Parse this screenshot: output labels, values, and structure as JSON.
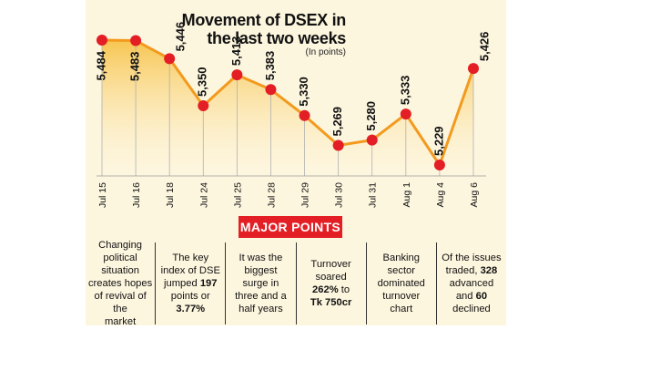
{
  "title_line1": "Movement of DSEX in",
  "title_line2": "the last two weeks",
  "subtitle": "(In points)",
  "major_points_title": "MAJOR POINTS",
  "colors": {
    "line": "#f39a1e",
    "marker": "#e31e24",
    "fill_top": "#f7c040",
    "fill_bottom": "#fdf6df",
    "badge": "#e31e24"
  },
  "chart_data": {
    "type": "area",
    "title": "Movement of DSEX in the last two weeks",
    "subtitle": "(In points)",
    "categories": [
      "Jul 15",
      "Jul 16",
      "Jul 18",
      "Jul 24",
      "Jul 25",
      "Jul 28",
      "Jul 29",
      "Jul 30",
      "Jul 31",
      "Aug 1",
      "Aug 4",
      "Aug 6"
    ],
    "values": [
      5484,
      5483,
      5446,
      5350,
      5413,
      5383,
      5330,
      5269,
      5280,
      5333,
      5229,
      5426
    ],
    "value_labels": [
      "5,484",
      "5,483",
      "5,446",
      "5,350",
      "5,413",
      "5,383",
      "5,330",
      "5,269",
      "5,280",
      "5,333",
      "5,229",
      "5,426"
    ],
    "xlabel": "",
    "ylabel": "",
    "grid": false
  },
  "points": [
    {
      "text": [
        "Changing",
        "political situation",
        "creates hopes",
        "of revival of the",
        "market"
      ]
    },
    {
      "text": [
        "The key",
        "index of DSE",
        "jumped 197",
        "points or",
        "3.77%"
      ],
      "bold": [
        "197",
        "3.77%"
      ]
    },
    {
      "text": [
        "It was the",
        "biggest",
        "surge in",
        "three and a",
        "half years"
      ]
    },
    {
      "text": [
        "Turnover",
        "soared",
        "262% to",
        "Tk 750cr"
      ],
      "bold": [
        "262%",
        "Tk 750cr"
      ]
    },
    {
      "text": [
        "Banking",
        "sector",
        "dominated",
        "turnover",
        "chart"
      ]
    },
    {
      "text": [
        "Of the issues",
        "traded, 328",
        "advanced",
        "and 60",
        "declined"
      ],
      "bold": [
        "328",
        "60"
      ]
    }
  ]
}
